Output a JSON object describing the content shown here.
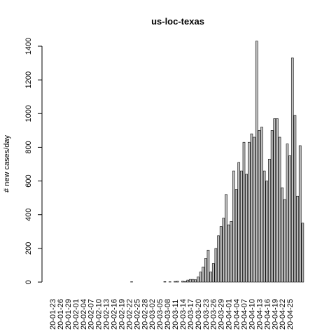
{
  "chart_data": {
    "type": "bar",
    "title": "us-loc-texas",
    "xlabel": "",
    "ylabel": "# new cases/day",
    "ylim": [
      0,
      1440
    ],
    "yticks": [
      0,
      200,
      400,
      600,
      800,
      1000,
      1200,
      1400
    ],
    "start_date": "2020-01-23",
    "xtick_labels": [
      "20-01-23",
      "20-01-26",
      "20-01-29",
      "20-02-01",
      "20-02-04",
      "20-02-07",
      "20-02-10",
      "20-02-13",
      "20-02-16",
      "20-02-19",
      "20-02-22",
      "20-02-25",
      "20-02-28",
      "20-03-02",
      "20-03-05",
      "20-03-08",
      "20-03-11",
      "20-03-14",
      "20-03-17",
      "20-03-20",
      "20-03-23",
      "20-03-26",
      "20-03-29",
      "20-04-01",
      "20-04-04",
      "20-04-07",
      "20-04-10",
      "20-04-13",
      "20-04-16",
      "20-04-19",
      "20-04-22",
      "20-04-25"
    ],
    "values": [
      0,
      0,
      0,
      0,
      0,
      0,
      0,
      0,
      0,
      0,
      0,
      0,
      0,
      0,
      0,
      0,
      0,
      0,
      0,
      0,
      0,
      0,
      0,
      0,
      0,
      0,
      0,
      0,
      0,
      0,
      0,
      2,
      0,
      0,
      0,
      0,
      0,
      0,
      0,
      0,
      0,
      0,
      0,
      0,
      3,
      0,
      2,
      0,
      4,
      5,
      0,
      6,
      4,
      12,
      16,
      16,
      14,
      30,
      60,
      90,
      140,
      190,
      60,
      110,
      200,
      275,
      330,
      380,
      520,
      340,
      360,
      660,
      550,
      710,
      660,
      830,
      640,
      830,
      880,
      860,
      1430,
      900,
      920,
      660,
      600,
      730,
      900,
      970,
      970,
      860,
      560,
      490,
      820,
      750,
      1330,
      990,
      510,
      810,
      350
    ]
  }
}
